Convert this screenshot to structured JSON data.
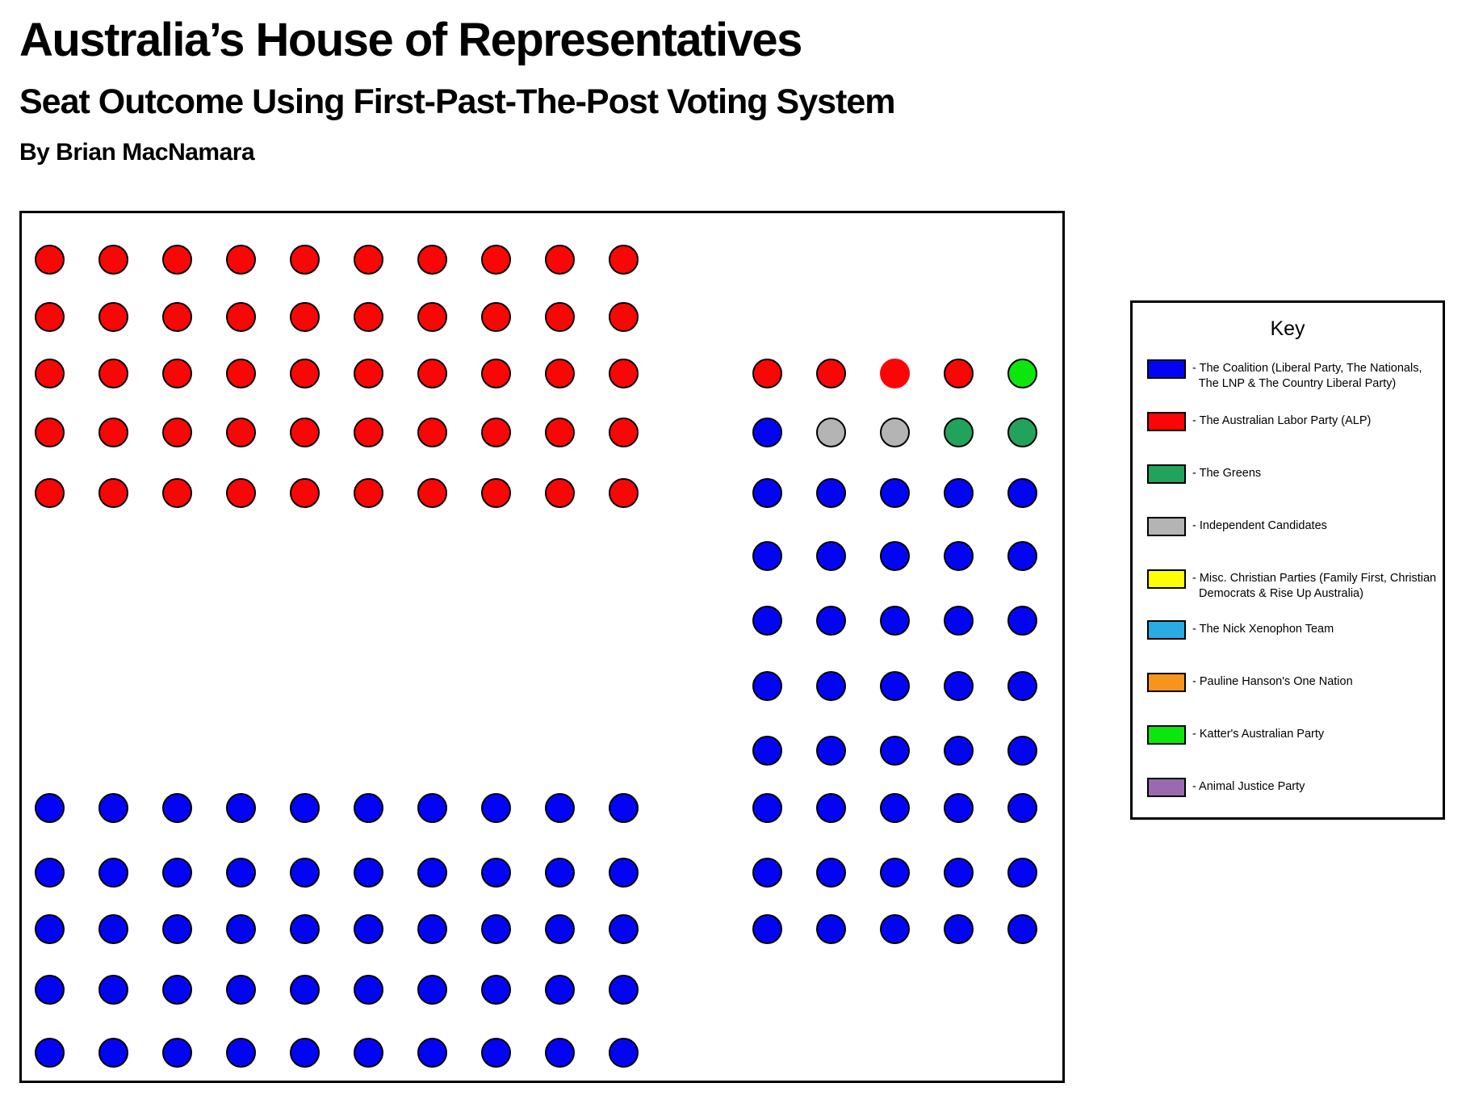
{
  "page": {
    "title": "Australia’s House of Representatives",
    "subtitle": "Seat Outcome Using First-Past-The-Post Voting System",
    "byline": "By Brian MacNamara"
  },
  "key": {
    "title": "Key",
    "entries": [
      {
        "party": "coalition",
        "color": "#0404f4",
        "lines": [
          "- The Coalition (Liberal Party, The Nationals,",
          "  The LNP & The Country Liberal Party)"
        ]
      },
      {
        "party": "alp",
        "color": "#fb0606",
        "lines": [
          "- The Australian Labor Party (ALP)"
        ]
      },
      {
        "party": "greens",
        "color": "#22a35b",
        "lines": [
          "- The Greens"
        ]
      },
      {
        "party": "independent",
        "color": "#b4b4b4",
        "lines": [
          "- Independent Candidates"
        ]
      },
      {
        "party": "christian",
        "color": "#fdfd06",
        "lines": [
          "- Misc. Christian Parties (Family First, Christian",
          "  Democrats & Rise Up Australia)"
        ]
      },
      {
        "party": "nxt",
        "color": "#2aabe2",
        "lines": [
          "- The Nick Xenophon Team"
        ]
      },
      {
        "party": "onenation",
        "color": "#f7941e",
        "lines": [
          "- Pauline Hanson's One Nation"
        ]
      },
      {
        "party": "katter",
        "color": "#0ce60c",
        "lines": [
          "- Katter's Australian Party"
        ]
      },
      {
        "party": "ajp",
        "color": "#9a6ab0",
        "lines": [
          "- Animal Justice Party"
        ]
      }
    ]
  },
  "chart_data": {
    "type": "seat-dot-plot",
    "title": "Australia’s House of Representatives — Seat Outcome Using First-Past-The-Post Voting System",
    "total_seats": 150,
    "seat_counts": {
      "coalition": 91,
      "alp": 54,
      "greens": 2,
      "independent": 2,
      "katter": 1,
      "christian": 0,
      "nxt": 0,
      "onenation": 0,
      "ajp": 0
    },
    "palette": {
      "coalition": "#0404f4",
      "alp": "#fb0606",
      "greens": "#22a35b",
      "independent": "#b4b4b4",
      "christian": "#fdfd06",
      "nxt": "#2aabe2",
      "onenation": "#f7941e",
      "katter": "#0ce60c",
      "ajp": "#9a6ab0"
    },
    "seat_codes": {
      "A": "alp",
      "A0": "alp",
      "C": "coalition",
      "G": "greens",
      "I": "independent",
      "K": "katter"
    },
    "note_A0": "A0 = ALP seat drawn without black outline in source image",
    "rows": [
      {
        "left": [
          "A",
          "A",
          "A",
          "A",
          "A",
          "A",
          "A",
          "A",
          "A",
          "A"
        ],
        "right": []
      },
      {
        "left": [
          "A",
          "A",
          "A",
          "A",
          "A",
          "A",
          "A",
          "A",
          "A",
          "A"
        ],
        "right": []
      },
      {
        "left": [
          "A",
          "A",
          "A",
          "A",
          "A",
          "A",
          "A",
          "A",
          "A",
          "A"
        ],
        "right": [
          "A",
          "A",
          "A0",
          "A",
          "K"
        ]
      },
      {
        "left": [
          "A",
          "A",
          "A",
          "A",
          "A",
          "A",
          "A",
          "A",
          "A",
          "A"
        ],
        "right": [
          "C",
          "I",
          "I",
          "G",
          "G"
        ]
      },
      {
        "left": [
          "A",
          "A",
          "A",
          "A",
          "A",
          "A",
          "A",
          "A",
          "A",
          "A"
        ],
        "right": [
          "C",
          "C",
          "C",
          "C",
          "C"
        ]
      },
      {
        "left": [],
        "right": [
          "C",
          "C",
          "C",
          "C",
          "C"
        ]
      },
      {
        "left": [],
        "right": [
          "C",
          "C",
          "C",
          "C",
          "C"
        ]
      },
      {
        "left": [],
        "right": [
          "C",
          "C",
          "C",
          "C",
          "C"
        ]
      },
      {
        "left": [],
        "right": [
          "C",
          "C",
          "C",
          "C",
          "C"
        ]
      },
      {
        "left": [
          "C",
          "C",
          "C",
          "C",
          "C",
          "C",
          "C",
          "C",
          "C",
          "C"
        ],
        "right": [
          "C",
          "C",
          "C",
          "C",
          "C"
        ]
      },
      {
        "left": [
          "C",
          "C",
          "C",
          "C",
          "C",
          "C",
          "C",
          "C",
          "C",
          "C"
        ],
        "right": [
          "C",
          "C",
          "C",
          "C",
          "C"
        ]
      },
      {
        "left": [
          "C",
          "C",
          "C",
          "C",
          "C",
          "C",
          "C",
          "C",
          "C",
          "C"
        ],
        "right": [
          "C",
          "C",
          "C",
          "C",
          "C"
        ]
      },
      {
        "left": [
          "C",
          "C",
          "C",
          "C",
          "C",
          "C",
          "C",
          "C",
          "C",
          "C"
        ],
        "right": []
      },
      {
        "left": [
          "C",
          "C",
          "C",
          "C",
          "C",
          "C",
          "C",
          "C",
          "C",
          "C"
        ],
        "right": []
      }
    ]
  }
}
